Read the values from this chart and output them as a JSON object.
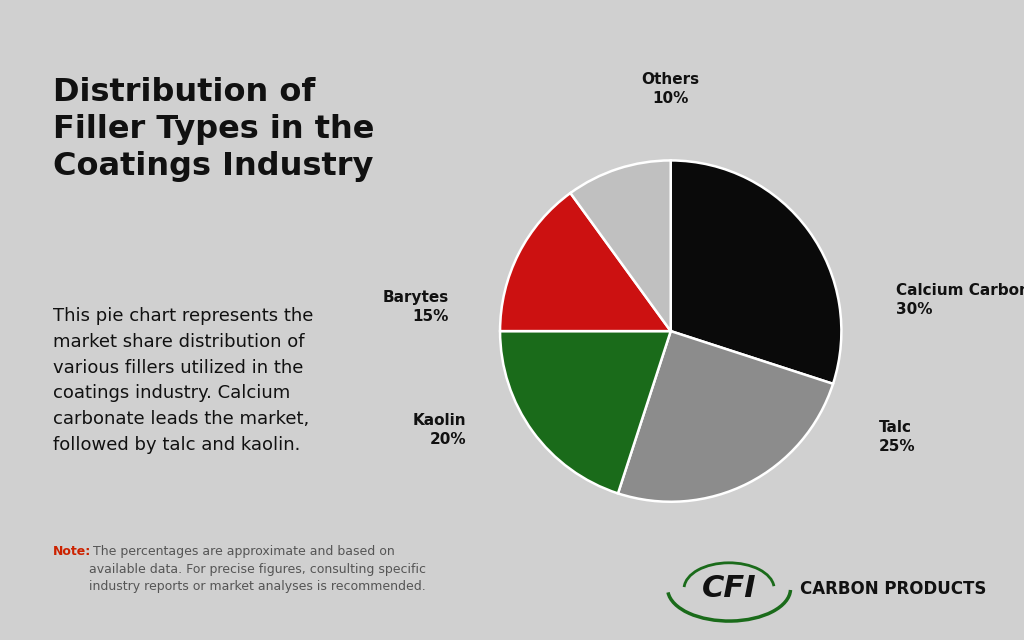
{
  "title": "Distribution of\nFiller Types in the\nCoatings Industry",
  "description": "This pie chart represents the\nmarket share distribution of\nvarious fillers utilized in the\ncoatings industry. Calcium\ncarbonate leads the market,\nfollowed by talc and kaolin.",
  "note_bold": "Note:",
  "note_text": " The percentages are approximate and based on\navailable data. For precise figures, consulting specific\nindustry reports or market analyses is recommended.",
  "percentages": [
    30,
    25,
    20,
    15,
    10
  ],
  "colors": [
    "#0a0a0a",
    "#8c8c8c",
    "#1a6b1a",
    "#cc1111",
    "#c0c0c0"
  ],
  "startangle": 90,
  "background_color": "#d0d0d0",
  "title_color": "#111111",
  "text_color": "#111111",
  "note_color": "#555555",
  "note_bold_color": "#cc2200",
  "label_fontsize": 11,
  "title_fontsize": 23,
  "desc_fontsize": 13,
  "note_fontsize": 9,
  "logo_text": "CFI  CARBON PRODUCTS",
  "logo_color": "#111111",
  "logo_green": "#1a6b1a"
}
